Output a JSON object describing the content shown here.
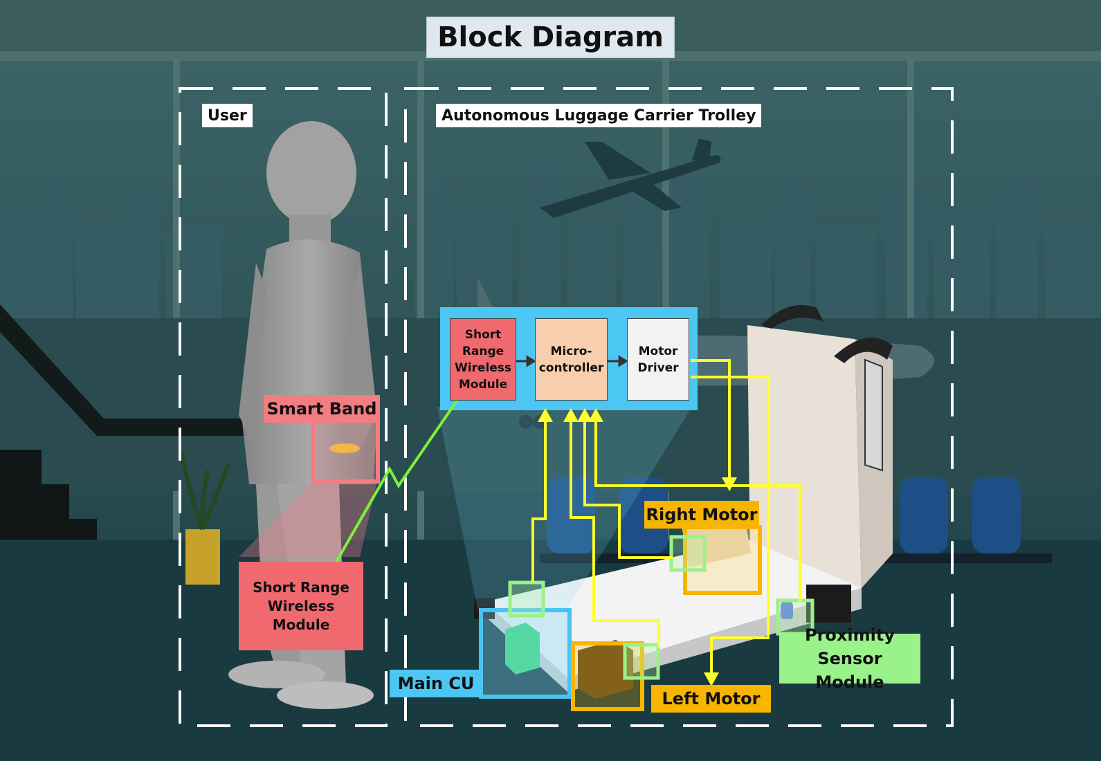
{
  "title": "Block Diagram",
  "sections": {
    "user": "User",
    "trolley": "Autonomous Luggage Carrier Trolley"
  },
  "blocks": {
    "wireless_module": "Short Range Wireless Module",
    "microcontroller": "Micro-controller",
    "motor_driver": "Motor Driver",
    "band_wireless_module": "Short Range Wireless Module"
  },
  "callouts": {
    "smart_band": "Smart Band",
    "right_motor": "Right Motor",
    "left_motor": "Left Motor",
    "main_cu": "Main CU",
    "proximity_sensor": "Proximity Sensor Module"
  },
  "colors": {
    "background": "#2f5458",
    "wireless_red": "#f0696f",
    "micro_peach": "#f7cfae",
    "driver_white": "#f2f2f2",
    "panel_blue": "#4cc6f2",
    "motor_orange": "#f7b500",
    "sensor_green": "#9af28a",
    "signal_yellow": "#ffff2a",
    "wireless_link_green": "#7cf23a"
  }
}
